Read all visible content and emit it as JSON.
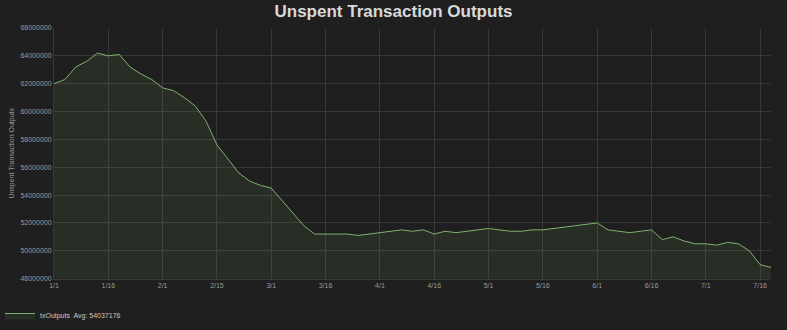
{
  "chart_data": {
    "type": "area",
    "title": "Unspent Transaction Outputs",
    "y_label": "Unspent Transaction Outputs",
    "categories": [
      "1/1",
      null,
      null,
      null,
      null,
      "1/16",
      null,
      null,
      null,
      null,
      "2/1",
      null,
      null,
      null,
      null,
      "2/15",
      null,
      null,
      null,
      null,
      "3/1",
      null,
      null,
      null,
      null,
      "3/16",
      null,
      null,
      null,
      null,
      "4/1",
      null,
      null,
      null,
      null,
      "4/16",
      null,
      null,
      null,
      null,
      "5/1",
      null,
      null,
      null,
      null,
      "5/16",
      null,
      null,
      null,
      null,
      "6/1",
      null,
      null,
      null,
      null,
      "6/16",
      null,
      null,
      null,
      null,
      "7/1",
      null,
      null,
      null,
      null,
      "7/16",
      null
    ],
    "series": [
      {
        "name": "txOutputs  Avg: 54037176",
        "color": "#7eb26d",
        "values": [
          62000000,
          62300000,
          63200000,
          63600000,
          64200000,
          64000000,
          64100000,
          63200000,
          62700000,
          62300000,
          61700000,
          61500000,
          61000000,
          60400000,
          59300000,
          57600000,
          56600000,
          55600000,
          55000000,
          54700000,
          54500000,
          53600000,
          52700000,
          51800000,
          51200000,
          51200000,
          51200000,
          51200000,
          51100000,
          51200000,
          51300000,
          51400000,
          51500000,
          51400000,
          51500000,
          51200000,
          51400000,
          51300000,
          51400000,
          51500000,
          51600000,
          51500000,
          51400000,
          51400000,
          51500000,
          51500000,
          51600000,
          51700000,
          51800000,
          51900000,
          52000000,
          51500000,
          51400000,
          51300000,
          51400000,
          51500000,
          50800000,
          51000000,
          50700000,
          50500000,
          50500000,
          50400000,
          50600000,
          50500000,
          50000000,
          49000000,
          48800000
        ]
      }
    ],
    "ylim": [
      48000000,
      66000000
    ],
    "yticks": [
      48000000,
      50000000,
      52000000,
      54000000,
      56000000,
      58000000,
      60000000,
      62000000,
      64000000,
      66000000
    ],
    "grid": true,
    "legend": "bottom-left"
  }
}
